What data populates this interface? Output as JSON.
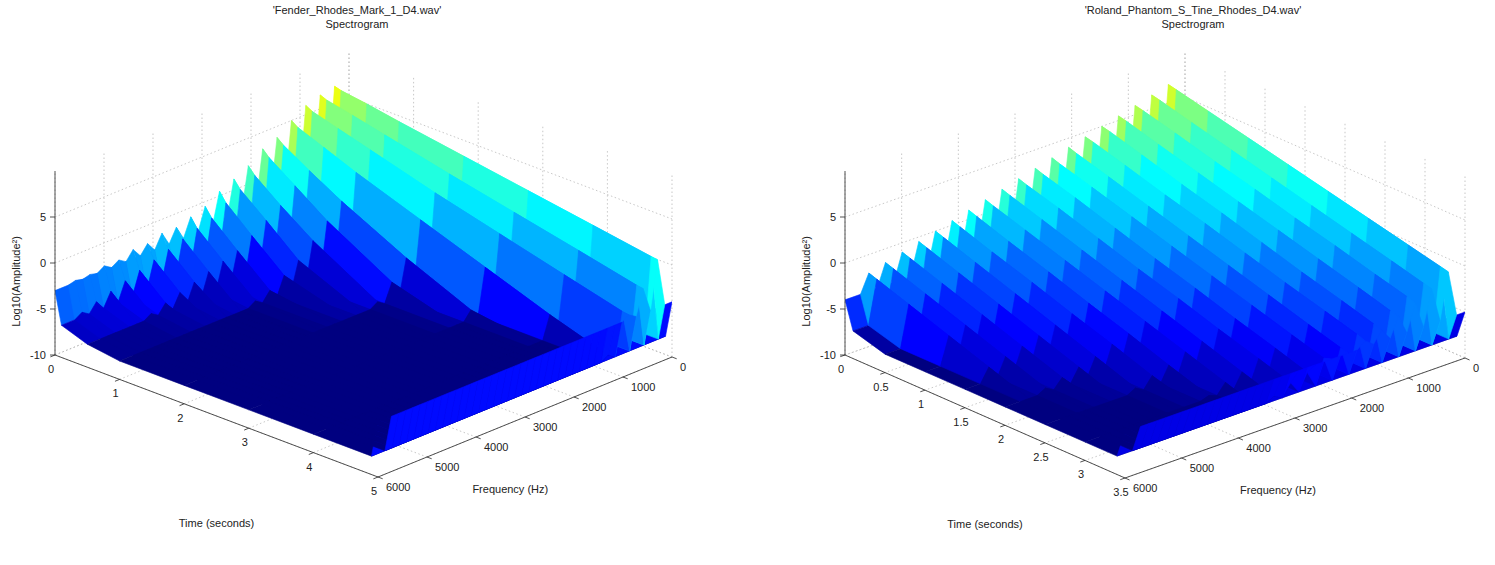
{
  "chart_data": [
    {
      "type": "surface",
      "title": "'Fender_Rhodes_Mark_1_D4.wav'",
      "subtitle": "Spectrogram",
      "x_label": "Time (seconds)",
      "y_label": "Frequency (Hz)",
      "z_label": "Log10(Amplitude²)",
      "xlim": [
        0,
        5
      ],
      "xticks": [
        0,
        1,
        2,
        3,
        4,
        5
      ],
      "ylim": [
        0,
        6000
      ],
      "yticks": [
        0,
        1000,
        2000,
        3000,
        4000,
        5000,
        6000
      ],
      "zlim": [
        -10,
        10
      ],
      "zticks": [
        -10,
        -5,
        0,
        5
      ],
      "grid": true,
      "color": "jet",
      "x": [
        0,
        0.1,
        0.5,
        1,
        2,
        3,
        4,
        4.9,
        5
      ],
      "noise_floor": [
        -3,
        -6.5,
        -7.5,
        -8,
        -8,
        -8,
        -8,
        -8,
        -4
      ],
      "ridges": [
        {
          "frequency": 294,
          "values": [
            6.8,
            6.6,
            6.2,
            5.6,
            4.5,
            3.4,
            2.3,
            1.3,
            1.2
          ]
        },
        {
          "frequency": 587,
          "values": [
            6.5,
            6.2,
            5.6,
            4.8,
            3.2,
            1.7,
            0.2,
            -1.2,
            -1.3
          ]
        },
        {
          "frequency": 881,
          "values": [
            6,
            5.6,
            4.8,
            3.8,
            1.8,
            0,
            -1.8,
            -3.4,
            -3.5
          ]
        },
        {
          "frequency": 1175,
          "values": [
            5,
            4.5,
            3.4,
            2,
            -0.5,
            -3,
            -5.5,
            -7.5,
            -4
          ]
        },
        {
          "frequency": 1468,
          "values": [
            3.8,
            3.2,
            1.5,
            -0.5,
            -4,
            -7,
            -8,
            -8,
            -4
          ]
        },
        {
          "frequency": 1762,
          "values": [
            3.2,
            2.5,
            0.5,
            -2,
            -6,
            -8,
            -8,
            -8,
            -4
          ]
        },
        {
          "frequency": 2055,
          "values": [
            2,
            1.2,
            -1,
            -3.5,
            -7.5,
            -8,
            -8,
            -8,
            -4
          ]
        },
        {
          "frequency": 2349,
          "values": [
            1.2,
            0.3,
            -2,
            -5,
            -8,
            -8,
            -8,
            -8,
            -4
          ]
        },
        {
          "frequency": 2643,
          "values": [
            0.5,
            -0.5,
            -3,
            -6,
            -8,
            -8,
            -8,
            -8,
            -4
          ]
        },
        {
          "frequency": 2936,
          "values": [
            -0.5,
            -1.5,
            -4,
            -7,
            -8,
            -8,
            -8,
            -8,
            -4
          ]
        },
        {
          "frequency": 3230,
          "values": [
            -1,
            -2,
            -4.5,
            -7.5,
            -8,
            -8,
            -8,
            -8,
            -4
          ]
        },
        {
          "frequency": 3524,
          "values": [
            -1.5,
            -2.5,
            -5,
            -8,
            -8,
            -8,
            -8,
            -8,
            -4
          ]
        },
        {
          "frequency": 3817,
          "values": [
            -1.5,
            -3,
            -5.5,
            -8,
            -8,
            -8,
            -8,
            -8,
            -4
          ]
        },
        {
          "frequency": 4111,
          "values": [
            -2,
            -3.5,
            -6,
            -8,
            -8,
            -8,
            -8,
            -8,
            -4
          ]
        },
        {
          "frequency": 4405,
          "values": [
            -2,
            -4,
            -6.5,
            -8,
            -8,
            -8,
            -8,
            -8,
            -4
          ]
        },
        {
          "frequency": 4698,
          "values": [
            -2.5,
            -4.5,
            -7,
            -8,
            -8,
            -8,
            -8,
            -8,
            -4
          ]
        },
        {
          "frequency": 4992,
          "values": [
            -2.5,
            -5,
            -7.5,
            -8,
            -8,
            -8,
            -8,
            -8,
            -4
          ]
        },
        {
          "frequency": 5286,
          "values": [
            -2.8,
            -5.5,
            -7.5,
            -8,
            -8,
            -8,
            -8,
            -8,
            -4
          ]
        },
        {
          "frequency": 5580,
          "values": [
            -2.8,
            -6,
            -7.5,
            -8,
            -8,
            -8,
            -8,
            -8,
            -4
          ]
        }
      ]
    },
    {
      "type": "surface",
      "title": "'Roland_Phantom_S_Tine_Rhodes_D4.wav'",
      "subtitle": "Spectrogram",
      "x_label": "Time (seconds)",
      "y_label": "Frequency (Hz)",
      "z_label": "Log10(Amplitude²)",
      "xlim": [
        0,
        3.5
      ],
      "xticks": [
        0,
        0.5,
        1,
        1.5,
        2,
        2.5,
        3,
        3.5
      ],
      "ylim": [
        0,
        6000
      ],
      "yticks": [
        0,
        1000,
        2000,
        3000,
        4000,
        5000,
        6000
      ],
      "zlim": [
        -10,
        10
      ],
      "zticks": [
        -10,
        -5,
        0,
        5
      ],
      "grid": true,
      "color": "jet",
      "x": [
        0,
        0.1,
        0.5,
        1,
        1.5,
        2,
        2.5,
        3,
        3.4,
        3.5
      ],
      "noise_floor": [
        -4,
        -7,
        -8,
        -8,
        -8,
        -8,
        -8,
        -8,
        -8,
        -5
      ],
      "ridges": [
        {
          "frequency": 294,
          "values": [
            7,
            6.8,
            6,
            5,
            4,
            3,
            2,
            1,
            0.2,
            0
          ]
        },
        {
          "frequency": 587,
          "values": [
            6.5,
            6.3,
            5.4,
            4.3,
            3.2,
            2.1,
            1,
            -0.1,
            -1,
            -1.2
          ]
        },
        {
          "frequency": 881,
          "values": [
            6,
            5.8,
            4.9,
            3.7,
            2.6,
            1.4,
            0.3,
            -0.9,
            -1.8,
            -2.1
          ]
        },
        {
          "frequency": 1175,
          "values": [
            5.5,
            5.3,
            4.3,
            3.1,
            1.9,
            0.7,
            -0.5,
            -1.7,
            -2.7,
            -2.9
          ]
        },
        {
          "frequency": 1468,
          "values": [
            5,
            4.8,
            3.8,
            2.5,
            1.3,
            0,
            -1.3,
            -2.5,
            -3.5,
            -3.8
          ]
        },
        {
          "frequency": 1762,
          "values": [
            4.5,
            4.3,
            3.3,
            2,
            0.8,
            -0.5,
            -1.8,
            -3,
            -4,
            -4.3
          ]
        },
        {
          "frequency": 2055,
          "values": [
            4,
            3.7,
            2.7,
            1.4,
            0.1,
            -1.2,
            -2.5,
            -3.8,
            -4.8,
            -5
          ]
        },
        {
          "frequency": 2349,
          "values": [
            3.5,
            3.2,
            2.2,
            0.9,
            -0.4,
            -1.7,
            -3,
            -4.3,
            -5.3,
            -5
          ]
        },
        {
          "frequency": 2643,
          "values": [
            3,
            2.7,
            1.7,
            0.3,
            -1.1,
            -2.4,
            -3.8,
            -5.1,
            -6.2,
            -5
          ]
        },
        {
          "frequency": 2936,
          "values": [
            2.5,
            2.2,
            1.2,
            -0.2,
            -1.6,
            -2.9,
            -4.3,
            -5.6,
            -6.7,
            -5
          ]
        },
        {
          "frequency": 3230,
          "values": [
            2,
            1.7,
            0.6,
            -0.8,
            -2.2,
            -3.6,
            -5,
            -6.4,
            -7.5,
            -5
          ]
        },
        {
          "frequency": 3524,
          "values": [
            1.5,
            1.2,
            0.1,
            -1.3,
            -2.7,
            -4.1,
            -5.5,
            -6.9,
            -8,
            -5
          ]
        },
        {
          "frequency": 3817,
          "values": [
            1,
            0.7,
            -0.5,
            -1.9,
            -3.4,
            -4.8,
            -6.3,
            -7.7,
            -8,
            -5
          ]
        },
        {
          "frequency": 4111,
          "values": [
            0.5,
            0.2,
            -1,
            -2.4,
            -3.9,
            -5.3,
            -6.8,
            -8,
            -8,
            -5
          ]
        },
        {
          "frequency": 4405,
          "values": [
            0,
            -0.3,
            -1.5,
            -3,
            -4.5,
            -6,
            -7.5,
            -8,
            -8,
            -5
          ]
        },
        {
          "frequency": 4698,
          "values": [
            -0.5,
            -0.8,
            -2,
            -3.5,
            -5,
            -6.5,
            -8,
            -8,
            -8,
            -5
          ]
        },
        {
          "frequency": 4992,
          "values": [
            -1,
            -1.3,
            -2.5,
            -4,
            -5.5,
            -7,
            -8,
            -8,
            -8,
            -5
          ]
        },
        {
          "frequency": 5286,
          "values": [
            -1.5,
            -1.8,
            -3,
            -4.5,
            -6,
            -7.5,
            -8,
            -8,
            -8,
            -5
          ]
        },
        {
          "frequency": 5580,
          "values": [
            -2,
            -2.3,
            -3.5,
            -5,
            -6.5,
            -8,
            -8,
            -8,
            -8,
            -5
          ]
        }
      ]
    }
  ]
}
